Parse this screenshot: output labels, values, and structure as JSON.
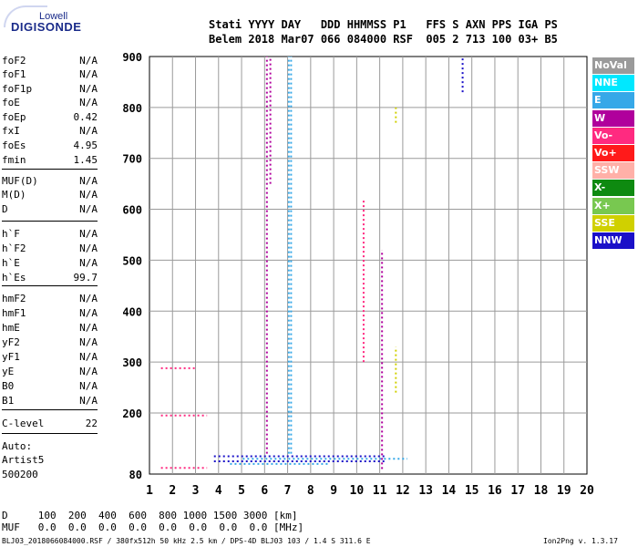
{
  "logo": {
    "line1": "Lowell",
    "line2": "DIGISONDE"
  },
  "header": {
    "row1": "Stati YYYY DAY   DDD HHMMSS P1   FFS S AXN PPS IGA PS",
    "row2": "Belem 2018 Mar07 066 084000 RSF  005 2 713 100 03+ B5"
  },
  "params": [
    {
      "name": "foF2",
      "value": "N/A"
    },
    {
      "name": "foF1",
      "value": "N/A"
    },
    {
      "name": "foF1p",
      "value": "N/A"
    },
    {
      "name": "foE",
      "value": "N/A"
    },
    {
      "name": "foEp",
      "value": "0.42"
    },
    {
      "name": "fxI",
      "value": "N/A"
    },
    {
      "name": "foEs",
      "value": "4.95"
    },
    {
      "name": "fmin",
      "value": "1.45"
    },
    {
      "name": "MUF(D)",
      "value": "N/A"
    },
    {
      "name": "M(D)",
      "value": "N/A"
    },
    {
      "name": "D",
      "value": "N/A"
    },
    {
      "name": "h`F",
      "value": "N/A"
    },
    {
      "name": "h`F2",
      "value": "N/A"
    },
    {
      "name": "h`E",
      "value": "N/A"
    },
    {
      "name": "h`Es",
      "value": "99.7"
    },
    {
      "name": "hmF2",
      "value": "N/A"
    },
    {
      "name": "hmF1",
      "value": "N/A"
    },
    {
      "name": "hmE",
      "value": "N/A"
    },
    {
      "name": "yF2",
      "value": "N/A"
    },
    {
      "name": "yF1",
      "value": "N/A"
    },
    {
      "name": "yE",
      "value": "N/A"
    },
    {
      "name": "B0",
      "value": "N/A"
    },
    {
      "name": "B1",
      "value": "N/A"
    },
    {
      "name": "C-level",
      "value": "22"
    }
  ],
  "auto": {
    "label": "Auto:",
    "artist": "Artist5",
    "version": "500200"
  },
  "legend": [
    {
      "label": "NoVal",
      "color": "#9a9a9a"
    },
    {
      "label": "NNE",
      "color": "#00e8ff"
    },
    {
      "label": "E",
      "color": "#36a8e8"
    },
    {
      "label": "W",
      "color": "#b0009c"
    },
    {
      "label": "Vo-",
      "color": "#ff2a80"
    },
    {
      "label": "Vo+",
      "color": "#ff1a1a"
    },
    {
      "label": "SSW",
      "color": "#ffb0a8"
    },
    {
      "label": "X-",
      "color": "#0e8a10"
    },
    {
      "label": "X+",
      "color": "#78c850"
    },
    {
      "label": "SSE",
      "color": "#d0d000"
    },
    {
      "label": "NNW",
      "color": "#1a10c8"
    }
  ],
  "footer": {
    "d_row": "D     100  200  400  600  800 1000 1500 3000 [km]",
    "muf_row": "MUF   0.0  0.0  0.0  0.0  0.0  0.0  0.0  0.0 [MHz]",
    "info_left": "BLJ03_2018066084000.RSF / 380fx512h 50 kHz 2.5 km / DPS-4D BLJ03 103 / 1.4 S 311.6 E",
    "info_right": "Ion2Png v. 1.3.17"
  },
  "chart_data": {
    "type": "scatter",
    "xlabel": "",
    "ylabel": "",
    "xlim": [
      1,
      20
    ],
    "ylim": [
      80,
      900
    ],
    "x_ticks": [
      1,
      2,
      3,
      4,
      5,
      6,
      7,
      8,
      9,
      10,
      11,
      12,
      13,
      14,
      15,
      16,
      17,
      18,
      19,
      20
    ],
    "y_ticks": [
      80,
      200,
      300,
      400,
      500,
      600,
      700,
      800,
      900
    ],
    "grid": true,
    "legend_position": "right",
    "series": [
      {
        "name": "E",
        "traces": [
          {
            "x": [
              7.05,
              7.05
            ],
            "y": [
              120,
              900
            ]
          },
          {
            "x": [
              7.15,
              7.15
            ],
            "y": [
              120,
              900
            ]
          },
          {
            "x": [
              5.05,
              12.2
            ],
            "y": [
              110,
              110
            ]
          },
          {
            "x": [
              4.5,
              8.8
            ],
            "y": [
              100,
              100
            ]
          }
        ]
      },
      {
        "name": "W",
        "traces": [
          {
            "x": [
              6.1,
              6.1
            ],
            "y": [
              120,
              900
            ]
          },
          {
            "x": [
              6.25,
              6.25
            ],
            "y": [
              650,
              900
            ]
          },
          {
            "x": [
              11.1,
              11.1
            ],
            "y": [
              90,
              520
            ]
          }
        ]
      },
      {
        "name": "Vo-",
        "traces": [
          {
            "x": [
              1.5,
              3.5
            ],
            "y": [
              92,
              92
            ]
          },
          {
            "x": [
              1.5,
              3.5
            ],
            "y": [
              195,
              195
            ]
          },
          {
            "x": [
              1.5,
              3.0
            ],
            "y": [
              288,
              288
            ]
          },
          {
            "x": [
              10.3,
              10.3
            ],
            "y": [
              300,
              620
            ]
          }
        ]
      },
      {
        "name": "NNW",
        "traces": [
          {
            "x": [
              3.8,
              11.2
            ],
            "y": [
              105,
              105
            ]
          },
          {
            "x": [
              3.8,
              11.2
            ],
            "y": [
              115,
              115
            ]
          },
          {
            "x": [
              14.6,
              14.6
            ],
            "y": [
              830,
              900
            ]
          }
        ]
      },
      {
        "name": "SSE",
        "traces": [
          {
            "x": [
              11.7,
              11.7
            ],
            "y": [
              240,
              330
            ]
          },
          {
            "x": [
              11.7,
              11.7
            ],
            "y": [
              770,
              800
            ]
          }
        ]
      }
    ]
  }
}
